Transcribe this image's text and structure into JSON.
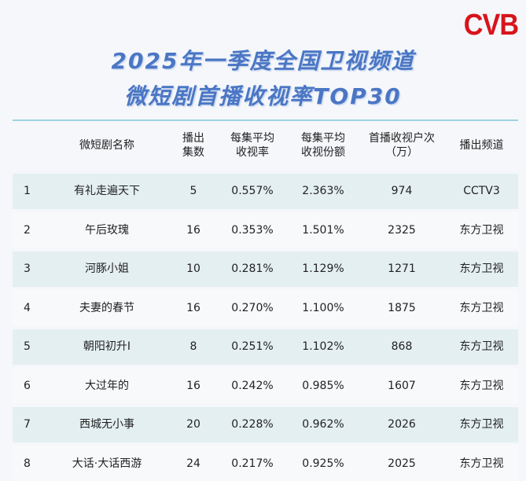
{
  "logo": "CVB",
  "title_line1": "2025年一季度全国卫视频道",
  "title_line2": "微短剧首播收视率TOP30",
  "headers": {
    "name": "微短剧名称",
    "episodes_1": "播出",
    "episodes_2": "集数",
    "avg_rating_1": "每集平均",
    "avg_rating_2": "收视率",
    "avg_share_1": "每集平均",
    "avg_share_2": "收视份额",
    "households_1": "首播收视户次",
    "households_2": "（万）",
    "channel": "播出频道"
  },
  "rows": [
    {
      "rank": "1",
      "name": "有礼走遍天下",
      "episodes": "5",
      "rating": "0.557%",
      "share": "2.363%",
      "households": "974",
      "channel": "CCTV3"
    },
    {
      "rank": "2",
      "name": "午后玫瑰",
      "episodes": "16",
      "rating": "0.353%",
      "share": "1.501%",
      "households": "2325",
      "channel": "东方卫视"
    },
    {
      "rank": "3",
      "name": "河豚小姐",
      "episodes": "10",
      "rating": "0.281%",
      "share": "1.129%",
      "households": "1271",
      "channel": "东方卫视"
    },
    {
      "rank": "4",
      "name": "夫妻的春节",
      "episodes": "16",
      "rating": "0.270%",
      "share": "1.100%",
      "households": "1875",
      "channel": "东方卫视"
    },
    {
      "rank": "5",
      "name": "朝阳初升Ⅰ",
      "episodes": "8",
      "rating": "0.251%",
      "share": "1.102%",
      "households": "868",
      "channel": "东方卫视"
    },
    {
      "rank": "6",
      "name": "大过年的",
      "episodes": "16",
      "rating": "0.242%",
      "share": "0.985%",
      "households": "1607",
      "channel": "东方卫视"
    },
    {
      "rank": "7",
      "name": "西城无小事",
      "episodes": "20",
      "rating": "0.228%",
      "share": "0.962%",
      "households": "2026",
      "channel": "东方卫视"
    },
    {
      "rank": "8",
      "name": "大话·大话西游",
      "episodes": "24",
      "rating": "0.217%",
      "share": "0.925%",
      "households": "2025",
      "channel": "东方卫视"
    }
  ]
}
